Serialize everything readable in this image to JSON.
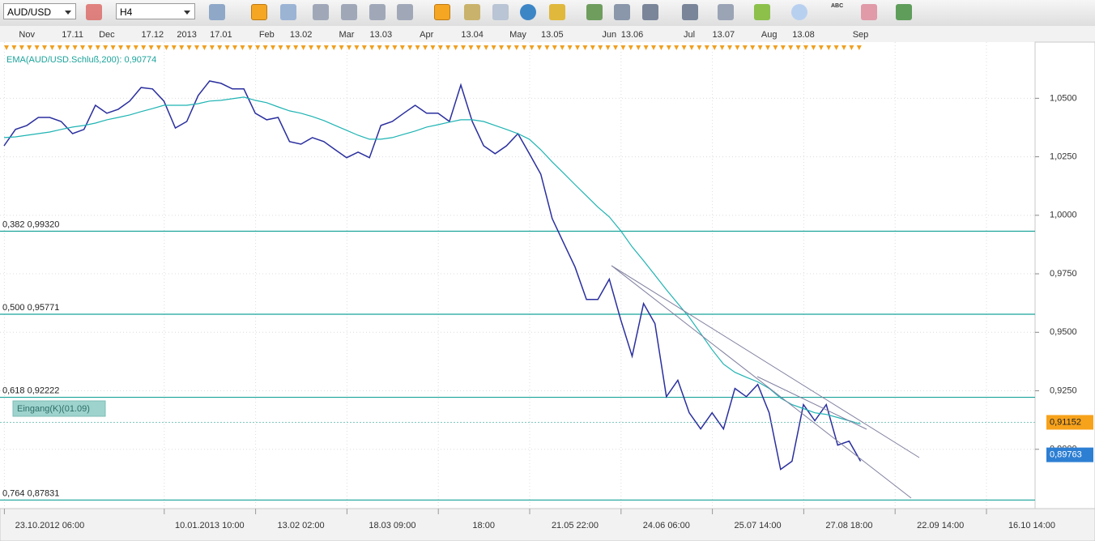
{
  "toolbar": {
    "symbol": "AUD/USD",
    "timeframe": "H4",
    "text_tool": "ABC"
  },
  "chart_data": {
    "type": "line",
    "indicator_label": "EMA(AUD/USD.Schluß,200): 0,90774",
    "entry_label": "Eingang(K)(01.09)",
    "categories": [
      null,
      null,
      null,
      null,
      "23.10.2012 06:00",
      null,
      null,
      null,
      null,
      null,
      null,
      null,
      null,
      null,
      null,
      null,
      null,
      null,
      "10.01.2013 10:00",
      null,
      null,
      null,
      null,
      null,
      null,
      null,
      "13.02 02:00",
      null,
      null,
      null,
      null,
      null,
      null,
      null,
      "18.03 09:00",
      null,
      null,
      null,
      null,
      null,
      null,
      null,
      "18:00",
      null,
      null,
      null,
      null,
      null,
      null,
      null,
      "21.05 22:00",
      null,
      null,
      null,
      null,
      null,
      null,
      null,
      "24.06 06:00",
      null,
      null,
      null,
      null,
      null,
      null,
      null,
      "25.07 14:00",
      null,
      null,
      null,
      null,
      null,
      null,
      null,
      "27.08 18:00",
      null,
      null,
      null,
      null,
      null,
      null,
      null,
      "22.09 14:00",
      null,
      null,
      null,
      null,
      null,
      null,
      null,
      "16.10 14:00"
    ],
    "top_categories": [
      null,
      null,
      "Nov",
      null,
      null,
      null,
      "17.11",
      null,
      null,
      "Dec",
      null,
      null,
      null,
      "17.12",
      null,
      null,
      "2013",
      null,
      null,
      "17.01",
      null,
      null,
      null,
      "Feb",
      null,
      null,
      "13.02",
      null,
      null,
      null,
      "Mar",
      null,
      null,
      "13.03",
      null,
      null,
      null,
      "Apr",
      null,
      null,
      null,
      "13.04",
      null,
      null,
      null,
      "May",
      null,
      null,
      "13.05",
      null,
      null,
      null,
      null,
      "Jun",
      null,
      "13.06",
      null,
      null,
      null,
      null,
      "Jul",
      null,
      null,
      "13.07",
      null,
      null,
      null,
      "Aug",
      null,
      null,
      "13.08",
      null,
      null,
      null,
      null,
      "Sep",
      null,
      null,
      null,
      null,
      null,
      null,
      null,
      null,
      null,
      null,
      null,
      null,
      null,
      null,
      null
    ],
    "series": [
      {
        "name": "AUD/USD",
        "color": "#2a2f9e",
        "values": [
          1.0297,
          1.0367,
          1.0384,
          1.0418,
          1.0418,
          1.0401,
          1.0349,
          1.0367,
          1.047,
          1.0436,
          1.0453,
          1.0488,
          1.0546,
          1.054,
          1.0488,
          1.0373,
          1.0401,
          1.0512,
          1.0574,
          1.0564,
          1.054,
          1.054,
          1.0436,
          1.0408,
          1.0418,
          1.0315,
          1.0304,
          1.0332,
          1.0315,
          1.028,
          1.0246,
          1.027,
          1.0246,
          1.0384,
          1.0401,
          1.0436,
          1.047,
          1.0436,
          1.0436,
          1.0401,
          1.0557,
          1.0401,
          1.0297,
          1.0263,
          1.0297,
          1.0349,
          1.0263,
          1.0176,
          0.9986,
          0.9882,
          0.9779,
          0.964,
          0.964,
          0.9727,
          0.9554,
          0.9398,
          0.9623,
          0.9537,
          0.9225,
          0.9295,
          0.9156,
          0.9087,
          0.9156,
          0.9087,
          0.926,
          0.9225,
          0.9277,
          0.9156,
          0.8914,
          0.8949,
          0.9191,
          0.9122,
          0.9191,
          0.9018,
          0.9035,
          0.8949,
          null,
          null,
          null,
          null,
          null,
          null,
          null,
          null,
          null,
          null,
          null,
          null,
          null,
          null,
          null
        ]
      },
      {
        "name": "EMA",
        "color": "#1fb3b3",
        "values": [
          1.0332,
          1.0335,
          1.0342,
          1.0349,
          1.0356,
          1.0367,
          1.0377,
          1.0384,
          1.0394,
          1.0408,
          1.0418,
          1.0429,
          1.0443,
          1.0456,
          1.047,
          1.047,
          1.047,
          1.0477,
          1.0488,
          1.0491,
          1.0498,
          1.0505,
          1.0491,
          1.0481,
          1.0463,
          1.0446,
          1.0436,
          1.0422,
          1.0405,
          1.0384,
          1.0363,
          1.0342,
          1.0325,
          1.0325,
          1.0332,
          1.0346,
          1.036,
          1.0377,
          1.0387,
          1.0398,
          1.0408,
          1.0408,
          1.0401,
          1.0384,
          1.0367,
          1.0349,
          1.0325,
          1.028,
          1.0228,
          1.018,
          1.0131,
          1.0083,
          1.0035,
          0.9993,
          0.9934,
          0.9865,
          0.9806,
          0.9744,
          0.9682,
          0.9623,
          0.9564,
          0.9495,
          0.9426,
          0.9364,
          0.9329,
          0.9308,
          0.9288,
          0.926,
          0.9219,
          0.9191,
          0.9174,
          0.9156,
          0.9149,
          0.9136,
          0.9122,
          0.9108,
          null,
          null,
          null,
          null,
          null,
          null,
          null,
          null,
          null,
          null,
          null,
          null,
          null,
          null,
          null
        ]
      }
    ],
    "ylim": [
      0.875,
      1.074
    ],
    "yticks": [
      {
        "value": 1.05,
        "label": "1,0500"
      },
      {
        "value": 1.025,
        "label": "1,0250"
      },
      {
        "value": 1.0,
        "label": "1,0000"
      },
      {
        "value": 0.975,
        "label": "0,9750"
      },
      {
        "value": 0.95,
        "label": "0,9500"
      },
      {
        "value": 0.925,
        "label": "0,9250"
      },
      {
        "value": 0.9,
        "label": "0,9000"
      }
    ],
    "fib_levels": [
      {
        "value": 0.9932,
        "label": "0,382 0,99320"
      },
      {
        "value": 0.95771,
        "label": "0,500 0,95771"
      },
      {
        "value": 0.92222,
        "label": "0,618 0,92222"
      },
      {
        "value": 0.87831,
        "label": "0,764 0,87831"
      }
    ],
    "fib_color": "#1aa39a",
    "price_markers": [
      {
        "value": 0.91152,
        "label": "0,91152",
        "color": "#f7a21b"
      },
      {
        "value": 0.89763,
        "label": "0,89763",
        "color": "#2d7fd3"
      }
    ],
    "grid": true
  }
}
